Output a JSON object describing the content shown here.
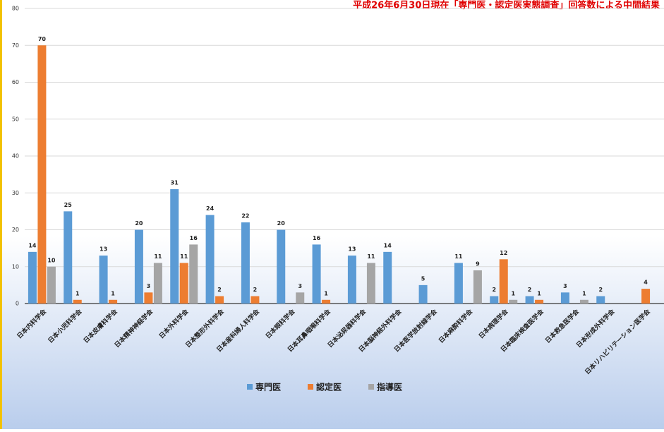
{
  "chart_data": {
    "type": "bar",
    "title": "平成26年6月30日現在「専門医・認定医実態調査」回答数による中間結果",
    "categories": [
      "日本内科学会",
      "日本小児科学会",
      "日本皮膚科学会",
      "日本精神神経学会",
      "日本外科学会",
      "日本整形外科学会",
      "日本産科婦人科学会",
      "日本眼科学会",
      "日本耳鼻咽喉科学会",
      "日本泌尿器科学会",
      "日本脳神経外科学会",
      "日本医学放射線学会",
      "日本麻酔科学会",
      "日本病理学会",
      "日本臨床検査医学会",
      "日本救急医学会",
      "日本形成外科学会",
      "日本リハビリテーション医学会"
    ],
    "series": [
      {
        "name": "専門医",
        "color": "#5b9bd5",
        "values": [
          14,
          25,
          13,
          20,
          31,
          24,
          22,
          20,
          16,
          13,
          14,
          5,
          11,
          2,
          2,
          3,
          2,
          null
        ]
      },
      {
        "name": "認定医",
        "color": "#ed7d31",
        "values": [
          70,
          1,
          1,
          3,
          11,
          2,
          2,
          null,
          1,
          null,
          null,
          null,
          null,
          12,
          1,
          null,
          null,
          4
        ]
      },
      {
        "name": "指導医",
        "color": "#a5a5a5",
        "values": [
          10,
          null,
          null,
          11,
          16,
          null,
          null,
          3,
          null,
          11,
          null,
          null,
          9,
          1,
          null,
          1,
          null,
          null
        ]
      }
    ],
    "ylim": [
      0,
      80
    ],
    "yticks": [
      0,
      10,
      20,
      30,
      40,
      50,
      60,
      70,
      80
    ],
    "grid": true,
    "legend": "bottom"
  }
}
